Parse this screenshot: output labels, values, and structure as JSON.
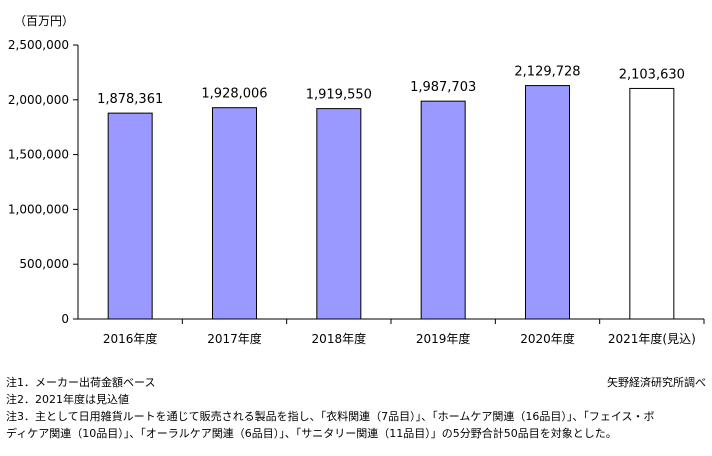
{
  "chart_data": {
    "type": "bar",
    "unit_label": "（百万円）",
    "categories": [
      "2016年度",
      "2017年度",
      "2018年度",
      "2019年度",
      "2020年度",
      "2021年度(見込)"
    ],
    "values": [
      1878361,
      1928006,
      1919550,
      1987703,
      2129728,
      2103630
    ],
    "value_labels": [
      "1,878,361",
      "1,928,006",
      "1,919,550",
      "1,987,703",
      "2,129,728",
      "2,103,630"
    ],
    "ylim": [
      0,
      2500000
    ],
    "yticks": [
      0,
      500000,
      1000000,
      1500000,
      2000000,
      2500000
    ],
    "ytick_labels": [
      "0",
      "500,000",
      "1,000,000",
      "1,500,000",
      "2,000,000",
      "2,500,000"
    ],
    "bar_colors": [
      "#9999ff",
      "#9999ff",
      "#9999ff",
      "#9999ff",
      "#9999ff",
      "#ffffff"
    ],
    "bar_stroke": "#000000",
    "grid": false
  },
  "notes": [
    "注1．メーカー出荷金額ベース",
    "注2．2021年度は見込値",
    "注3．主として日用雑貨ルートを通じて販売される製品を指し、「衣料関連（7品目）」、「ホームケア関連（16品目）」、「フェイス・ボ",
    "ディケア関連（10品目）」、「オーラルケア関連（6品目）」、「サニタリー関連（11品目）」の5分野合計50品目を対象とした。"
  ],
  "source": "矢野経済研究所調べ"
}
